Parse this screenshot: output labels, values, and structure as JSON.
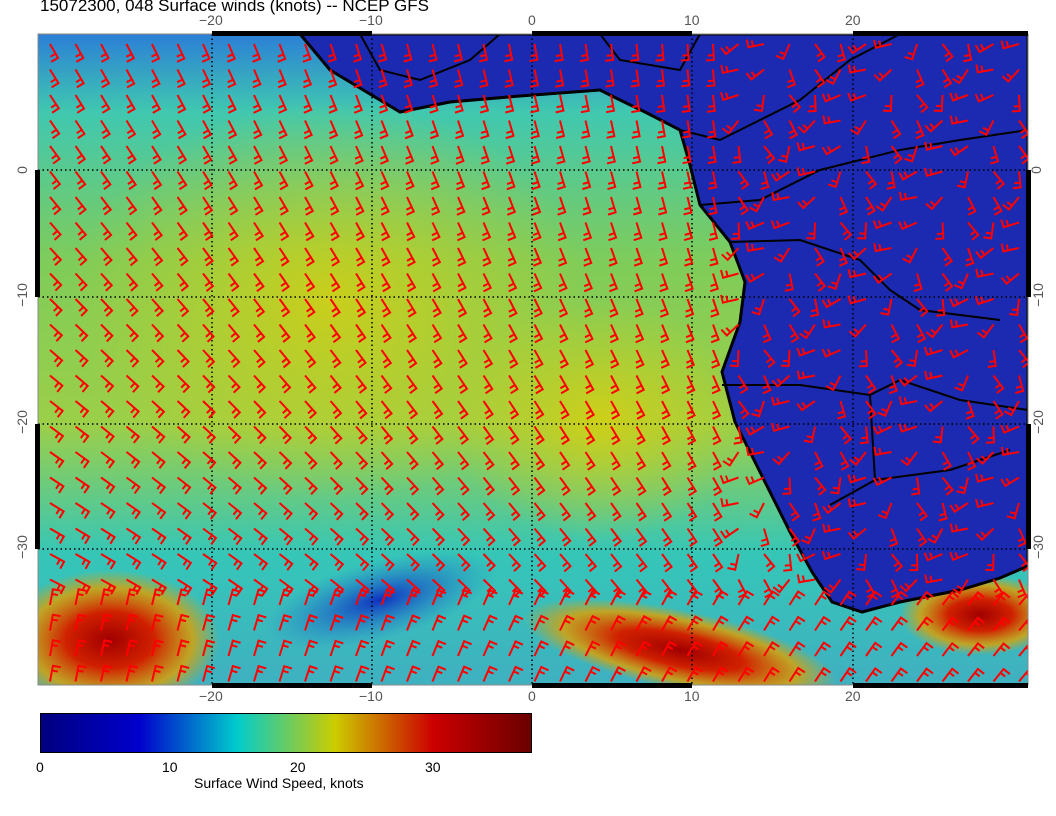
{
  "title": "15072300, 048 Surface winds (knots) -- NCEP GFS",
  "map": {
    "region": "South Atlantic / Southern Africa",
    "lon_range": [
      -31,
      31
    ],
    "lat_range": [
      11,
      -41
    ],
    "lon_ticks": [
      "−20",
      "−10",
      "0",
      "10",
      "20"
    ],
    "lat_ticks": [
      "0",
      "−10",
      "−20",
      "−30"
    ],
    "gridlines": "dotted",
    "barb_color": "#ff0000",
    "land_outline_color": "#000000"
  },
  "colorbar": {
    "label": "Surface Wind Speed, knots",
    "tick_labels": [
      "0",
      "10",
      "20",
      "30"
    ],
    "range": [
      0,
      38
    ],
    "colors": [
      "#00007f",
      "#0000cc",
      "#00cccc",
      "#cccc00",
      "#cc0000",
      "#6a0000"
    ]
  }
}
